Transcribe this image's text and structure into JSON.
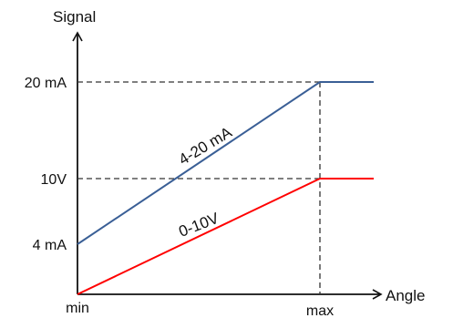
{
  "chart_data": {
    "type": "line",
    "xlabel": "Angle",
    "ylabel": "Signal",
    "x_ticks": [
      "min",
      "max"
    ],
    "y_ticks": [
      {
        "label": "4 mA",
        "value": 4
      },
      {
        "label": "10V",
        "value": 10
      },
      {
        "label": "20 mA",
        "value": 20
      }
    ],
    "grid": false,
    "reference_lines": "dashed guides from max and from 10V / 20 mA",
    "series": [
      {
        "name": "4-20 mA",
        "color": "#3a5f96",
        "points": [
          {
            "x": "min",
            "y": 4
          },
          {
            "x": "max",
            "y": 20
          },
          {
            "x": "beyond max",
            "y": 20
          }
        ]
      },
      {
        "name": "0-10V",
        "color": "#ff0000",
        "points": [
          {
            "x": "min",
            "y": 0
          },
          {
            "x": "max",
            "y": 10
          },
          {
            "x": "beyond max",
            "y": 10
          }
        ]
      }
    ]
  }
}
